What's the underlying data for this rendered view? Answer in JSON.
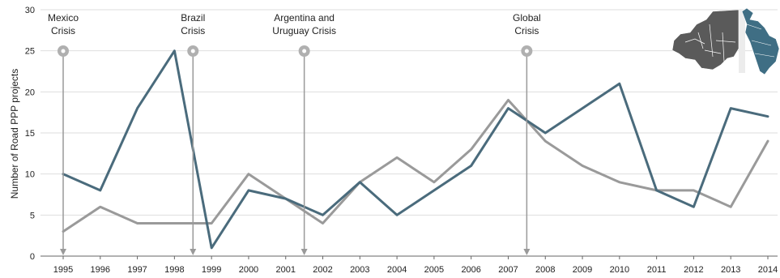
{
  "chart_data": {
    "type": "line",
    "ylabel": "Number of Road PPP projects",
    "ylim": [
      0,
      30
    ],
    "yticks": [
      0,
      5,
      10,
      15,
      20,
      25,
      30
    ],
    "grid": true,
    "x": [
      "1995",
      "1996",
      "1997",
      "1998",
      "1999",
      "2000",
      "2001",
      "2002",
      "2003",
      "2004",
      "2005",
      "2006",
      "2007",
      "2008",
      "2009",
      "2010",
      "2011",
      "2012",
      "2013",
      "2014"
    ],
    "series": [
      {
        "color": "#4a6b7c",
        "values": [
          10,
          8,
          18,
          25,
          1,
          8,
          7,
          5,
          9,
          5,
          8,
          11,
          18,
          15,
          18,
          21,
          8,
          6,
          18,
          17
        ]
      },
      {
        "color": "#9a9a9a",
        "values": [
          3,
          6,
          4,
          4,
          4,
          10,
          7,
          4,
          9,
          12,
          9,
          13,
          19,
          14,
          11,
          9,
          8,
          8,
          6,
          14
        ]
      }
    ],
    "annotations": [
      {
        "lines": [
          "Mexico",
          "Crisis"
        ],
        "year_pos": 1995.0
      },
      {
        "lines": [
          "Brazil",
          "Crisis"
        ],
        "year_pos": 1998.5
      },
      {
        "lines": [
          "Argentina and",
          "Uruguay Crisis"
        ],
        "year_pos": 2001.5
      },
      {
        "lines": [
          "Global",
          "Crisis"
        ],
        "year_pos": 2007.5
      }
    ],
    "inset_map": {
      "description_icon": "americas-map-icon",
      "highlight_color": "#3f6e84",
      "base_color": "#5a5a5a"
    }
  }
}
